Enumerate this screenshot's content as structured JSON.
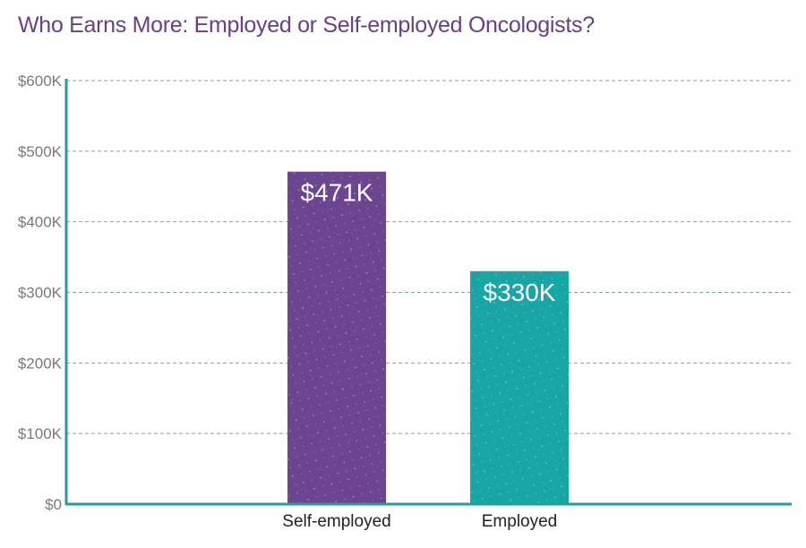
{
  "chart_data": {
    "type": "bar",
    "title": "Who Earns More: Employed or Self-employed Oncologists?",
    "categories": [
      "Self-employed",
      "Employed"
    ],
    "values": [
      471,
      330
    ],
    "data_labels": [
      "$471K",
      "$330K"
    ],
    "ylim": [
      0,
      600
    ],
    "yticks": [
      0,
      100,
      200,
      300,
      400,
      500,
      600
    ],
    "ytick_labels": [
      "$0",
      "$100K",
      "$200K",
      "$300K",
      "$400K",
      "$500K",
      "$600K"
    ],
    "xlabel": "",
    "ylabel": "",
    "grid": true,
    "colors": [
      "#6c4591",
      "#17a5a6"
    ],
    "axis_color": "#2a9a9c",
    "grid_color": "#8aa0a8"
  }
}
